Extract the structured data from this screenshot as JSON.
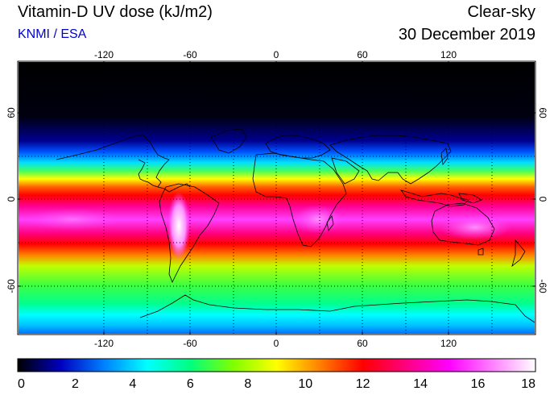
{
  "header": {
    "title": "Vitamin-D UV dose (kJ/m2)",
    "source": "KNMI / ESA",
    "condition": "Clear-sky",
    "date": "30 December 2019"
  },
  "map": {
    "lon_ticks": [
      "-120",
      "-60",
      "0",
      "60",
      "120"
    ],
    "lat_ticks": [
      "60",
      "0",
      "-60"
    ]
  },
  "colorbar": {
    "min": 0,
    "max": 18,
    "labels": [
      "0",
      "2",
      "4",
      "6",
      "8",
      "10",
      "12",
      "14",
      "16",
      "18"
    ],
    "stops": [
      "#000000",
      "#0000c0",
      "#0080ff",
      "#00ffff",
      "#00ff80",
      "#80ff00",
      "#ffff00",
      "#ff8000",
      "#ff0000",
      "#ff0080",
      "#ff00ff",
      "#ff80ff",
      "#ffffff"
    ]
  }
}
